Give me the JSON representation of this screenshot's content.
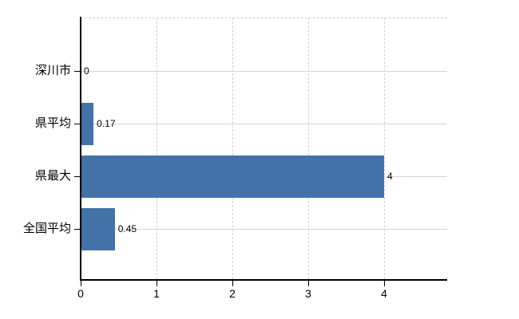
{
  "chart_data": {
    "type": "bar",
    "orientation": "horizontal",
    "title": "",
    "xlabel": "",
    "ylabel": "",
    "categories": [
      "深川市",
      "県平均",
      "県最大",
      "全国平均"
    ],
    "values": [
      0,
      0.17,
      4,
      0.45
    ],
    "value_labels": [
      "0",
      "0.17",
      "4",
      "0.45"
    ],
    "x_ticks": [
      0,
      1,
      2,
      3,
      4
    ],
    "x_tick_labels": [
      "0",
      "1",
      "2",
      "3",
      "4"
    ],
    "xlim": [
      0,
      4.83
    ],
    "grid": true,
    "legend": false
  },
  "colors": {
    "bar": "#4272a7",
    "grid_vertical": "#d2d2d2",
    "grid_horizontal": "#d2d6d2",
    "axis": "#000000",
    "text": "#000000",
    "background": "#ffffff"
  }
}
